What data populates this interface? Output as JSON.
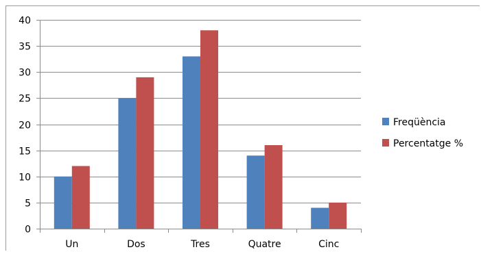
{
  "chart_data": {
    "type": "bar",
    "title": "",
    "xlabel": "",
    "ylabel": "",
    "categories": [
      "Un",
      "Dos",
      "Tres",
      "Quatre",
      "Cinc"
    ],
    "series": [
      {
        "name": "Freqüència",
        "values": [
          10,
          25,
          33,
          14,
          4
        ],
        "color": "#4f81bd"
      },
      {
        "name": "Percentatge %",
        "values": [
          12,
          29,
          38,
          16,
          5
        ],
        "color": "#c0504d"
      }
    ],
    "ylim": [
      0,
      40
    ],
    "yticks": [
      0,
      5,
      10,
      15,
      20,
      25,
      30,
      35,
      40
    ],
    "grid": true,
    "legend": "right"
  }
}
